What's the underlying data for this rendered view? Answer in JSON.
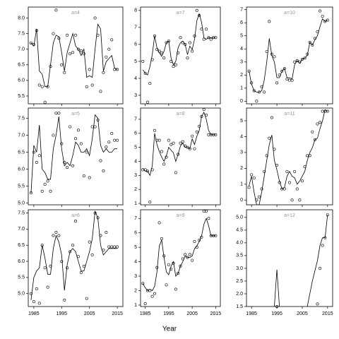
{
  "xlabel": "Year",
  "chart_data": [
    {
      "type": "scatter",
      "title": "a=4",
      "xlim": [
        1983,
        2017
      ],
      "xticks": [
        1985,
        1995,
        2005,
        2015
      ],
      "ylim": [
        5.25,
        8.35
      ],
      "yticks": [
        5.5,
        {
          "value": 6,
          "label": "6.0"
        },
        6.5,
        {
          "value": 7,
          "label": "7.0"
        },
        7.5,
        {
          "value": 8,
          "label": "8.0"
        }
      ],
      "x": [
        1984,
        1985,
        1986,
        1987,
        1988,
        1989,
        1990,
        1991,
        1992,
        1993,
        1994,
        1995,
        1996,
        1997,
        1998,
        1999,
        2000,
        2001,
        2002,
        2003,
        2004,
        2005,
        2006,
        2007,
        2008,
        2009,
        2010,
        2011,
        2012,
        2013,
        2014,
        2015
      ],
      "values": [
        7.2,
        7.15,
        7.6,
        5.85,
        5.8,
        5.3,
        5.8,
        6.45,
        7.5,
        8.25,
        7.35,
        6.5,
        6.25,
        7.45,
        6.85,
        6.9,
        7.45,
        7.0,
        6.95,
        6.85,
        5.8,
        6.35,
        5.85,
        8.0,
        7.45,
        5.65,
        6.25,
        6.75,
        7.0,
        7.3,
        6.35,
        6.35
      ],
      "fit": [
        7.2,
        7.1,
        7.65,
        6.3,
        6.2,
        5.8,
        5.8,
        6.5,
        7.2,
        7.45,
        7.4,
        6.9,
        6.3,
        6.9,
        7.2,
        7.5,
        7.1,
        7.0,
        6.8,
        7.0,
        6.1,
        6.15,
        6.1,
        7.0,
        7.8,
        7.65,
        6.3,
        6.6,
        6.7,
        6.8,
        6.4,
        6.35
      ]
    },
    {
      "type": "scatter",
      "title": "a=7",
      "xlim": [
        1983,
        2017
      ],
      "xticks": [
        1985,
        1995,
        2005,
        2015
      ],
      "ylim": [
        2.5,
        8.2
      ],
      "yticks": [
        3,
        4,
        5,
        6,
        7,
        8
      ],
      "x": [
        1984,
        1985,
        1986,
        1987,
        1988,
        1989,
        1990,
        1991,
        1992,
        1993,
        1994,
        1995,
        1996,
        1997,
        1998,
        1999,
        2000,
        2001,
        2002,
        2003,
        2004,
        2005,
        2006,
        2007,
        2008,
        2009,
        2010,
        2011,
        2012,
        2013,
        2014,
        2015
      ],
      "values": [
        5.0,
        4.3,
        2.6,
        3.7,
        5.1,
        6.5,
        5.7,
        5.6,
        5.5,
        5.2,
        6.1,
        6.2,
        5.0,
        4.7,
        4.8,
        5.5,
        6.4,
        6.1,
        6.0,
        5.2,
        6.1,
        5.6,
        6.5,
        8.0,
        7.7,
        6.9,
        6.3,
        6.9,
        6.4,
        6.3,
        6.4,
        6.4
      ],
      "fit": [
        4.5,
        4.3,
        4.2,
        4.7,
        5.4,
        6.5,
        5.8,
        5.5,
        5.3,
        5.6,
        6.1,
        6.2,
        5.2,
        4.8,
        5.0,
        5.8,
        6.1,
        6.2,
        6.0,
        5.4,
        5.9,
        5.7,
        6.3,
        7.4,
        7.8,
        7.3,
        6.4,
        6.3,
        6.4,
        6.4,
        6.4,
        6.4
      ]
    },
    {
      "type": "scatter",
      "title": "a=10",
      "xlim": [
        1983,
        2017
      ],
      "xticks": [
        1985,
        1995,
        2005,
        2015
      ],
      "ylim": [
        -0.2,
        7.2
      ],
      "yticks": [
        0,
        1,
        2,
        3,
        4,
        5,
        6,
        7
      ],
      "x": [
        1984,
        1985,
        1986,
        1987,
        1988,
        1989,
        1990,
        1991,
        1992,
        1993,
        1994,
        1995,
        1996,
        1997,
        1998,
        1999,
        2000,
        2001,
        2002,
        2003,
        2004,
        2005,
        2006,
        2007,
        2008,
        2009,
        2010,
        2011,
        2012,
        2013,
        2014,
        2015
      ],
      "values": [
        2.3,
        1.4,
        0.8,
        0,
        0.7,
        1.1,
        0.7,
        3.8,
        6.1,
        3.6,
        3.4,
        1.4,
        2.0,
        2.3,
        2.5,
        1.7,
        1.6,
        1.6,
        3.0,
        3.1,
        3.0,
        3.2,
        3.3,
        3.6,
        4.5,
        4.3,
        4.8,
        5.3,
        6.9,
        6.5,
        6.1,
        6.2
      ],
      "fit": [
        2.3,
        1.3,
        0.8,
        0.7,
        0.7,
        0.8,
        1.6,
        3.0,
        4.8,
        3.5,
        3.0,
        1.8,
        1.8,
        2.3,
        2.5,
        1.8,
        1.8,
        1.7,
        2.8,
        3.1,
        2.9,
        3.2,
        3.3,
        3.5,
        4.5,
        4.3,
        4.7,
        5.0,
        5.7,
        6.3,
        6.1,
        6.2
      ]
    },
    {
      "type": "scatter",
      "title": "a=5",
      "xlim": [
        1983,
        2017
      ],
      "xticks": [
        1985,
        1995,
        2005,
        2015
      ],
      "ylim": [
        4.95,
        7.8
      ],
      "yticks": [
        {
          "value": 5,
          "label": "5.0"
        },
        5.5,
        {
          "value": 6,
          "label": "6.0"
        },
        6.5,
        {
          "value": 7,
          "label": "7.0"
        },
        7.5
      ],
      "x": [
        1984,
        1985,
        1986,
        1987,
        1988,
        1989,
        1990,
        1991,
        1992,
        1993,
        1994,
        1995,
        1996,
        1997,
        1998,
        1999,
        2000,
        2001,
        2002,
        2003,
        2004,
        2005,
        2006,
        2007,
        2008,
        2009,
        2010,
        2011,
        2012,
        2013,
        2014,
        2015
      ],
      "values": [
        5.3,
        6.5,
        6.2,
        6.4,
        5.35,
        5.55,
        5.65,
        5.35,
        7.0,
        7.65,
        7.65,
        6.75,
        6.2,
        6.05,
        7.25,
        6.1,
        6.9,
        7.15,
        6.75,
        5.8,
        6.5,
        5.75,
        7.25,
        7.25,
        7.45,
        6.25,
        5.95,
        6.65,
        6.8,
        7.05,
        6.85,
        6.85
      ],
      "fit": [
        5.3,
        6.7,
        6.5,
        7.3,
        6.0,
        5.9,
        5.7,
        5.7,
        6.6,
        7.0,
        7.55,
        6.6,
        6.1,
        6.2,
        6.1,
        6.4,
        6.8,
        6.7,
        6.5,
        6.5,
        6.6,
        6.4,
        6.9,
        7.6,
        7.5,
        6.7,
        6.5,
        6.6,
        6.5,
        6.5,
        6.6,
        6.6
      ]
    },
    {
      "type": "scatter",
      "title": "a=8",
      "xlim": [
        1983,
        2017
      ],
      "xticks": [
        1985,
        1995,
        2005,
        2015
      ],
      "ylim": [
        0.9,
        7.8
      ],
      "yticks": [
        1,
        2,
        3,
        4,
        5,
        6,
        7
      ],
      "x": [
        1984,
        1985,
        1986,
        1987,
        1988,
        1989,
        1990,
        1991,
        1992,
        1993,
        1994,
        1995,
        1996,
        1997,
        1998,
        1999,
        2000,
        2001,
        2002,
        2003,
        2004,
        2005,
        2006,
        2007,
        2008,
        2009,
        2010,
        2011,
        2012,
        2013,
        2014,
        2015
      ],
      "values": [
        3.4,
        3.4,
        3.3,
        1.1,
        3.4,
        6.2,
        5.5,
        5.5,
        4.7,
        3.8,
        4.3,
        5.5,
        5.2,
        5.3,
        3.2,
        4.5,
        5.3,
        5.4,
        5.1,
        5.0,
        4.9,
        5.8,
        4.9,
        6.1,
        6.5,
        7.2,
        7.7,
        7.3,
        5.9,
        5.9,
        5.9,
        5.9
      ],
      "fit": [
        3.5,
        3.3,
        3.3,
        3.0,
        3.7,
        6.0,
        5.2,
        4.7,
        4.3,
        4.0,
        4.4,
        5.0,
        4.8,
        4.6,
        4.0,
        4.5,
        5.1,
        5.3,
        5.0,
        5.0,
        4.9,
        5.6,
        5.2,
        5.8,
        6.2,
        7.2,
        7.5,
        7.0,
        6.2,
        5.9,
        5.9,
        5.9
      ]
    },
    {
      "type": "scatter",
      "title": "a=11",
      "xlim": [
        1983,
        2017
      ],
      "xticks": [
        1985,
        1995,
        2005,
        2015
      ],
      "ylim": [
        -0.3,
        5.8
      ],
      "yticks": [
        0,
        1,
        2,
        3,
        4,
        5
      ],
      "x": [
        1984,
        1985,
        1986,
        1987,
        1988,
        1989,
        1990,
        1991,
        1992,
        1993,
        1994,
        1995,
        1996,
        1997,
        1998,
        1999,
        2000,
        2001,
        2002,
        2003,
        2004,
        2005,
        2006,
        2007,
        2008,
        2009,
        2010,
        2011,
        2012,
        2013,
        2014,
        2015
      ],
      "values": [
        0.8,
        1.6,
        1.4,
        0,
        0.2,
        0.7,
        1.8,
        2.8,
        3.9,
        5.2,
        3.2,
        2.2,
        1.1,
        0.7,
        0.7,
        1.8,
        1.1,
        0,
        1.8,
        0.7,
        0,
        1.2,
        2.1,
        2.8,
        2.8,
        4.3,
        3.8,
        4.8,
        4.9,
        5.6,
        5.6,
        5.6
      ],
      "fit": [
        0.9,
        1.5,
        0.5,
        -0.3,
        -0.3,
        0.5,
        1.5,
        2.5,
        3.5,
        4.1,
        2.5,
        1.9,
        1.2,
        0.7,
        0.8,
        1.5,
        1.8,
        1.5,
        1.4,
        1.0,
        1.2,
        1.5,
        1.8,
        2.5,
        3.0,
        3.3,
        3.8,
        3.9,
        4.5,
        5.0,
        5.7,
        5.6
      ]
    },
    {
      "type": "scatter",
      "title": "a=6",
      "xlim": [
        1983,
        2017
      ],
      "xticks": [
        1985,
        1995,
        2005,
        2015
      ],
      "ylim": [
        4.6,
        7.6
      ],
      "yticks": [
        {
          "value": 5,
          "label": "5.0"
        },
        5.5,
        {
          "value": 6,
          "label": "6.0"
        },
        6.5,
        {
          "value": 7,
          "label": "7.0"
        },
        7.5
      ],
      "x": [
        1984,
        1985,
        1986,
        1987,
        1988,
        1989,
        1990,
        1991,
        1992,
        1993,
        1994,
        1995,
        1996,
        1997,
        1998,
        1999,
        2000,
        2001,
        2002,
        2003,
        2004,
        2005,
        2006,
        2007,
        2008,
        2009,
        2010,
        2011,
        2012,
        2013,
        2014,
        2015
      ],
      "values": [
        5.0,
        4.75,
        5.15,
        4.7,
        6.5,
        5.8,
        5.2,
        5.85,
        6.8,
        6.9,
        6.8,
        6.0,
        4.8,
        5.8,
        6.3,
        6.5,
        7.25,
        6.15,
        5.65,
        5.85,
        4.85,
        6.6,
        6.2,
        7.5,
        7.35,
        6.8,
        6.35,
        6.9,
        6.45,
        6.45,
        6.45,
        6.45
      ],
      "fit": [
        4.8,
        5.5,
        5.7,
        5.8,
        6.5,
        6.1,
        5.6,
        5.6,
        6.4,
        6.8,
        6.6,
        6.2,
        5.1,
        5.9,
        6.3,
        6.4,
        6.3,
        6.0,
        5.7,
        5.7,
        6.0,
        6.3,
        6.7,
        7.55,
        7.35,
        6.5,
        6.2,
        6.3,
        6.4,
        6.4,
        6.4,
        6.4
      ]
    },
    {
      "type": "scatter",
      "title": "a=9",
      "xlim": [
        1983,
        2017
      ],
      "xticks": [
        1985,
        1995,
        2005,
        2015
      ],
      "ylim": [
        0.9,
        7.6
      ],
      "yticks": [
        1,
        2,
        3,
        4,
        5,
        6,
        7
      ],
      "x": [
        1984,
        1985,
        1986,
        1987,
        1988,
        1989,
        1990,
        1991,
        1992,
        1993,
        1994,
        1995,
        1996,
        1997,
        1998,
        1999,
        2000,
        2001,
        2002,
        2003,
        2004,
        2005,
        2006,
        2007,
        2008,
        2009,
        2010,
        2011,
        2012,
        2013,
        2014,
        2015
      ],
      "values": [
        2.5,
        1.1,
        2.0,
        2.0,
        1.6,
        1.8,
        3.6,
        6.7,
        5.6,
        4.4,
        2.4,
        3.8,
        3.5,
        3.9,
        2.1,
        3.2,
        3.7,
        4.2,
        4.5,
        4.3,
        4.5,
        4.1,
        5.4,
        5.0,
        5.5,
        5.7,
        7.5,
        7.5,
        7.0,
        5.8,
        5.8,
        5.8
      ],
      "fit": [
        2.5,
        2.2,
        2.0,
        2.1,
        2.0,
        2.3,
        3.3,
        5.1,
        5.5,
        4.3,
        3.3,
        3.1,
        3.7,
        4.0,
        3.0,
        3.2,
        3.7,
        4.0,
        4.4,
        4.3,
        4.3,
        4.4,
        4.9,
        5.1,
        5.4,
        5.8,
        6.6,
        7.0,
        6.5,
        5.8,
        5.8,
        5.8
      ]
    },
    {
      "type": "scatter",
      "title": "a=12",
      "xlim": [
        1983,
        2017
      ],
      "xticks": [
        1985,
        1995,
        2005,
        2015
      ],
      "ylim": [
        1.5,
        5.3
      ],
      "yticks": [
        1.5,
        {
          "value": 2,
          "label": "2.0"
        },
        2.5,
        {
          "value": 3,
          "label": "3.0"
        },
        3.5,
        {
          "value": 4,
          "label": "4.0"
        },
        4.5,
        {
          "value": 5,
          "label": "5.0"
        }
      ],
      "x": [
        1984,
        1985,
        1986,
        1987,
        1988,
        1989,
        1990,
        1991,
        1992,
        1993,
        1994,
        1995,
        1996,
        1997,
        1998,
        1999,
        2000,
        2001,
        2002,
        2003,
        2004,
        2005,
        2006,
        2007,
        2008,
        2009,
        2010,
        2011,
        2012,
        2013,
        2014,
        2015
      ],
      "values": [
        null,
        null,
        null,
        null,
        null,
        null,
        null,
        null,
        null,
        null,
        null,
        1.5,
        null,
        null,
        null,
        null,
        null,
        null,
        null,
        null,
        null,
        null,
        null,
        null,
        null,
        null,
        null,
        1.6,
        3.0,
        3.9,
        4.2,
        5.1
      ],
      "fit": [
        null,
        null,
        null,
        null,
        null,
        null,
        null,
        null,
        null,
        null,
        1.5,
        2.95,
        1.5,
        null,
        null,
        null,
        null,
        null,
        null,
        null,
        null,
        null,
        null,
        1.5,
        2.0,
        2.5,
        2.9,
        3.3,
        3.9,
        4.2,
        4.2,
        5.1
      ]
    }
  ]
}
